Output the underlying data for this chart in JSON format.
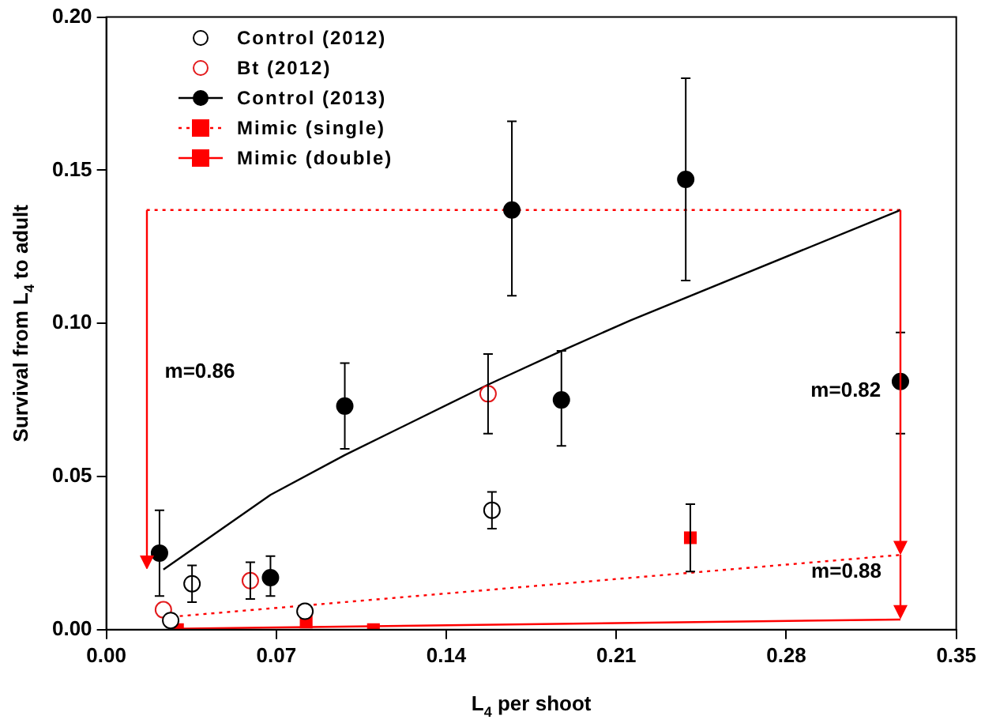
{
  "chart_data": {
    "type": "scatter",
    "xlabel": "L$_{4}$ per shoot",
    "ylabel": "Survival from L$_{4}$ to adult",
    "xlim": [
      0,
      0.35
    ],
    "xticks": [
      {
        "value": 0,
        "label": "0.00"
      },
      {
        "value": 0.07,
        "label": "0.07"
      },
      {
        "value": 0.14,
        "label": "0.14"
      },
      {
        "value": 0.21,
        "label": "0.21"
      },
      {
        "value": 0.28,
        "label": "0.28"
      },
      {
        "value": 0.35,
        "label": "0.35"
      }
    ],
    "ylim": [
      0,
      0.2
    ],
    "yticks": [
      {
        "value": 0,
        "label": "0.00"
      },
      {
        "value": 0.05,
        "label": "0.05"
      },
      {
        "value": 0.1,
        "label": "0.10"
      },
      {
        "value": 0.15,
        "label": "0.15"
      },
      {
        "value": 0.2,
        "label": "0.20"
      }
    ],
    "grid": false,
    "legend": "top left",
    "series": [
      {
        "name": "Control (2012)",
        "marker": "circle",
        "color": "#000000",
        "x": [
          0.0265,
          0.0353,
          0.0818,
          0.1588
        ],
        "values": [
          0.003,
          0.015,
          0.006,
          0.039
        ],
        "errors": [
          null,
          [
            0.009,
            0.021
          ],
          null,
          [
            0.033,
            0.045
          ]
        ]
      },
      {
        "name": "Bt (2012)",
        "marker": "circle",
        "color": "#e31a1c",
        "x": [
          0.0235,
          0.0593,
          0.1572
        ],
        "values": [
          0.0065,
          0.016,
          0.077
        ],
        "errors": [
          null,
          [
            0.01,
            0.022
          ],
          [
            0.064,
            0.09
          ]
        ]
      },
      {
        "name": "Control (2013)",
        "marker": "circle",
        "color": "#000000",
        "x": [
          0.0219,
          0.0676,
          0.0982,
          0.167,
          0.1874,
          0.2386,
          0.327
        ],
        "values": [
          0.025,
          0.017,
          0.073,
          0.137,
          0.075,
          0.147,
          0.081
        ],
        "errors": [
          [
            0.011,
            0.039
          ],
          [
            0.011,
            0.024
          ],
          [
            0.059,
            0.087
          ],
          [
            0.109,
            0.166
          ],
          [
            0.06,
            0.091
          ],
          [
            0.114,
            0.18
          ],
          [
            0.064,
            0.097
          ]
        ]
      },
      {
        "type": "line",
        "marker": "none",
        "line_style": "solid",
        "color": "#000000",
        "x": [
          0.0235,
          0.0676,
          0.0982,
          0.1572,
          0.1874,
          0.2159,
          0.327
        ],
        "values": [
          0.0196,
          0.044,
          0.057,
          0.08,
          0.091,
          0.101,
          0.137
        ]
      },
      {
        "name": "Mimic (single)",
        "marker": "square",
        "color": "#ff0000",
        "x": [
          0.0293,
          0.2405
        ],
        "values": [
          0.0,
          0.03
        ],
        "errors": [
          null,
          [
            0.019,
            0.041
          ]
        ]
      },
      {
        "type": "line",
        "marker": "none",
        "line_style": "dotted",
        "color": "#ff0000",
        "x": [
          0.027,
          0.327
        ],
        "values": [
          0.0042,
          0.0244
        ]
      },
      {
        "name": "Mimic (double)",
        "marker": "square",
        "color": "#ff0000",
        "x": [
          0.0823,
          0.11
        ],
        "values": [
          0.0025,
          0.0
        ]
      },
      {
        "type": "line",
        "marker": "none",
        "line_style": "solid",
        "color": "#ff0000",
        "x": [
          0.027,
          0.327
        ],
        "values": [
          0.0003,
          0.0033
        ]
      },
      {
        "type": "line",
        "marker": "none",
        "line_style": "dotted",
        "color": "#ff0000",
        "x": [
          0.0166,
          0.327
        ],
        "values": [
          0.137,
          0.137
        ]
      }
    ],
    "annotations": [
      "m=0.86",
      "m=0.82",
      {
        "text": "m=0.88",
        "x": 0.327,
        "y": 0.0244
      }
    ]
  }
}
